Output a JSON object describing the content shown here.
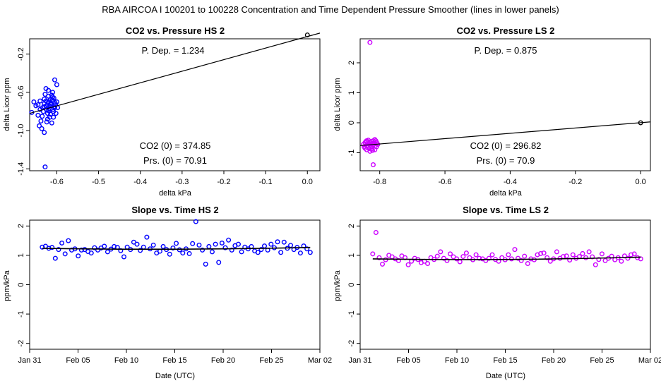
{
  "page_title": "RBA   AIRCOA I  100201 to 100228   Concentration and Time Dependent Pressure Smoother (lines in lower panels)",
  "colors": {
    "hs": "#0000ff",
    "ls": "#cc00ff",
    "axis": "#000000",
    "line": "#000000"
  },
  "chart_data": [
    {
      "id": "p1",
      "type": "scatter",
      "title": "CO2 vs. Pressure HS 2",
      "xlabel": "delta kPa",
      "ylabel": "delta Licor ppm",
      "xlim": [
        -0.665,
        0.03
      ],
      "ylim": [
        -1.42,
        -0.04
      ],
      "xticks": [
        -0.6,
        -0.5,
        -0.4,
        -0.3,
        -0.2,
        -0.1,
        0.0
      ],
      "xtick_labels": [
        "-0.6",
        "-0.5",
        "-0.4",
        "-0.3",
        "-0.2",
        "-0.1",
        "0.0"
      ],
      "yticks": [
        -1.4,
        -1.0,
        -0.6,
        -0.2
      ],
      "ytick_labels": [
        "-1.4",
        "-1.0",
        "-0.6",
        "-0.2"
      ],
      "color_key": "hs",
      "annotations": {
        "p_dep": "P. Dep. =  1.234",
        "co2_0": "CO2 (0) =  374.85",
        "prs_0": "Prs. (0) =  70.91"
      },
      "fit_line": {
        "x": [
          -0.665,
          0.03
        ],
        "y": [
          -0.82,
          0.02
        ]
      },
      "reference_point": {
        "x": 0.0,
        "y": 0.0
      },
      "points": [
        [
          -0.63,
          -0.72
        ],
        [
          -0.625,
          -0.78
        ],
        [
          -0.62,
          -0.7
        ],
        [
          -0.615,
          -0.83
        ],
        [
          -0.61,
          -0.65
        ],
        [
          -0.605,
          -0.76
        ],
        [
          -0.6,
          -0.7
        ],
        [
          -0.635,
          -0.85
        ],
        [
          -0.628,
          -0.62
        ],
        [
          -0.622,
          -0.88
        ],
        [
          -0.618,
          -0.74
        ],
        [
          -0.612,
          -0.69
        ],
        [
          -0.608,
          -0.8
        ],
        [
          -0.603,
          -0.73
        ],
        [
          -0.64,
          -0.69
        ],
        [
          -0.63,
          -0.67
        ],
        [
          -0.625,
          -0.74
        ],
        [
          -0.62,
          -0.79
        ],
        [
          -0.614,
          -0.71
        ],
        [
          -0.61,
          -0.68
        ],
        [
          -0.606,
          -0.75
        ],
        [
          -0.6,
          -0.52
        ],
        [
          -0.605,
          -0.47
        ],
        [
          -0.61,
          -0.6
        ],
        [
          -0.62,
          -0.58
        ],
        [
          -0.626,
          -0.56
        ],
        [
          -0.632,
          -0.8
        ],
        [
          -0.638,
          -0.9
        ],
        [
          -0.645,
          -0.84
        ],
        [
          -0.65,
          -0.74
        ],
        [
          -0.655,
          -0.7
        ],
        [
          -0.66,
          -0.81
        ],
        [
          -0.642,
          -0.95
        ],
        [
          -0.636,
          -0.98
        ],
        [
          -0.63,
          -1.02
        ],
        [
          -0.624,
          -0.91
        ],
        [
          -0.617,
          -0.86
        ],
        [
          -0.612,
          -0.92
        ],
        [
          -0.607,
          -0.66
        ],
        [
          -0.602,
          -0.82
        ],
        [
          -0.598,
          -0.76
        ],
        [
          -0.628,
          -1.38
        ],
        [
          -0.634,
          -0.76
        ],
        [
          -0.62,
          -0.64
        ],
        [
          -0.615,
          -0.72
        ],
        [
          -0.61,
          -0.78
        ],
        [
          -0.622,
          -0.82
        ],
        [
          -0.616,
          -0.68
        ],
        [
          -0.63,
          -0.75
        ],
        [
          -0.612,
          -0.63
        ],
        [
          -0.604,
          -0.71
        ],
        [
          -0.626,
          -0.69
        ],
        [
          -0.618,
          -0.77
        ],
        [
          -0.608,
          -0.86
        ],
        [
          -0.64,
          -0.78
        ],
        [
          -0.645,
          -0.73
        ]
      ]
    },
    {
      "id": "p2",
      "type": "scatter",
      "title": "CO2 vs. Pressure LS 2",
      "xlabel": "delta kPa",
      "ylabel": "delta Licor ppm",
      "xlim": [
        -0.86,
        0.03
      ],
      "ylim": [
        -1.6,
        2.8
      ],
      "xticks": [
        -0.8,
        -0.6,
        -0.4,
        -0.2,
        0.0
      ],
      "xtick_labels": [
        "-0.8",
        "-0.6",
        "-0.4",
        "-0.2",
        "0.0"
      ],
      "yticks": [
        -1,
        0,
        1,
        2
      ],
      "ytick_labels": [
        "-1",
        "0",
        "1",
        "2"
      ],
      "color_key": "ls",
      "annotations": {
        "p_dep": "P. Dep. =  0.875",
        "co2_0": "CO2 (0) =  296.82",
        "prs_0": "Prs. (0) =  70.9"
      },
      "fit_line": {
        "x": [
          -0.86,
          0.03
        ],
        "y": [
          -0.76,
          0.03
        ]
      },
      "reference_point": {
        "x": 0.0,
        "y": 0.0
      },
      "points": [
        [
          -0.83,
          2.68
        ],
        [
          -0.82,
          -1.4
        ],
        [
          -0.84,
          -0.6
        ],
        [
          -0.835,
          -0.7
        ],
        [
          -0.83,
          -0.75
        ],
        [
          -0.825,
          -0.62
        ],
        [
          -0.82,
          -0.68
        ],
        [
          -0.815,
          -0.78
        ],
        [
          -0.81,
          -0.7
        ],
        [
          -0.845,
          -0.85
        ],
        [
          -0.84,
          -0.9
        ],
        [
          -0.835,
          -0.58
        ],
        [
          -0.83,
          -0.95
        ],
        [
          -0.825,
          -0.8
        ],
        [
          -0.82,
          -0.6
        ],
        [
          -0.815,
          -0.9
        ],
        [
          -0.81,
          -0.65
        ],
        [
          -0.85,
          -0.72
        ],
        [
          -0.845,
          -0.66
        ],
        [
          -0.84,
          -0.78
        ],
        [
          -0.835,
          -0.82
        ],
        [
          -0.83,
          -0.64
        ],
        [
          -0.825,
          -0.88
        ],
        [
          -0.82,
          -0.74
        ],
        [
          -0.815,
          -0.56
        ],
        [
          -0.81,
          -0.8
        ],
        [
          -0.806,
          -0.72
        ],
        [
          -0.836,
          -0.76
        ],
        [
          -0.826,
          -0.7
        ],
        [
          -0.816,
          -0.68
        ],
        [
          -0.842,
          -0.62
        ],
        [
          -0.832,
          -0.86
        ],
        [
          -0.822,
          -0.92
        ],
        [
          -0.812,
          -0.6
        ],
        [
          -0.848,
          -0.8
        ]
      ]
    },
    {
      "id": "p3",
      "type": "scatter",
      "title": "Slope vs. Time HS 2",
      "xlabel": "Date (UTC)",
      "ylabel": "ppm/kPa",
      "xlim": [
        0,
        30
      ],
      "ylim": [
        -2.2,
        2.2
      ],
      "xticks": [
        0,
        5,
        10,
        15,
        20,
        25,
        30
      ],
      "xtick_labels": [
        "Jan 31",
        "Feb 05",
        "Feb 10",
        "Feb 15",
        "Feb 20",
        "Feb 25",
        "Mar 02"
      ],
      "yticks": [
        -2,
        -1,
        0,
        1,
        2
      ],
      "ytick_labels": [
        "-2",
        "-1",
        "0",
        "1",
        "2"
      ],
      "color_key": "hs",
      "smoother": {
        "x": [
          1.3,
          29
        ],
        "y": [
          1.24,
          1.27
        ],
        "mid_y": 1.21
      },
      "series_y": [
        1.28,
        1.31,
        1.24,
        1.27,
        0.9,
        1.2,
        1.42,
        1.05,
        1.5,
        1.18,
        1.22,
        0.98,
        1.18,
        1.2,
        1.13,
        1.08,
        1.26,
        1.18,
        1.25,
        1.31,
        1.12,
        1.21,
        1.3,
        1.27,
        1.16,
        0.95,
        1.28,
        1.2,
        1.45,
        1.38,
        1.17,
        1.28,
        1.62,
        1.22,
        1.35,
        1.08,
        1.14,
        1.3,
        1.2,
        1.04,
        1.25,
        1.41,
        1.19,
        1.08,
        1.22,
        1.06,
        1.4,
        2.15,
        1.35,
        1.18,
        0.7,
        1.3,
        1.12,
        1.38,
        0.76,
        1.42,
        1.26,
        1.52,
        1.18,
        1.33,
        1.38,
        1.12,
        1.28,
        1.22,
        1.3,
        1.15,
        1.1,
        1.2,
        1.32,
        1.18,
        1.38,
        1.26,
        1.46,
        1.1,
        1.45,
        1.24,
        1.34,
        1.2,
        1.27,
        1.08,
        1.32,
        1.22,
        1.1
      ]
    },
    {
      "id": "p4",
      "type": "scatter",
      "title": "Slope vs. Time LS 2",
      "xlabel": "Date (UTC)",
      "ylabel": "ppm/kPa",
      "xlim": [
        0,
        30
      ],
      "ylim": [
        -2.2,
        2.2
      ],
      "xticks": [
        0,
        5,
        10,
        15,
        20,
        25,
        30
      ],
      "xtick_labels": [
        "Jan 31",
        "Feb 05",
        "Feb 10",
        "Feb 15",
        "Feb 20",
        "Feb 25",
        "Mar 02"
      ],
      "yticks": [
        -2,
        -1,
        0,
        1,
        2
      ],
      "ytick_labels": [
        "-2",
        "-1",
        "0",
        "1",
        "2"
      ],
      "color_key": "ls",
      "smoother": {
        "x": [
          1.3,
          29
        ],
        "y": [
          0.88,
          0.94
        ],
        "mid_y": 0.86
      },
      "series_y": [
        1.05,
        1.78,
        0.92,
        0.7,
        0.85,
        1.0,
        0.95,
        0.88,
        0.82,
        0.98,
        0.92,
        0.68,
        0.8,
        0.9,
        0.86,
        0.75,
        0.8,
        0.72,
        0.92,
        0.86,
        0.97,
        1.12,
        0.9,
        0.82,
        1.05,
        0.95,
        0.88,
        0.78,
        0.96,
        1.08,
        0.92,
        0.85,
        1.02,
        0.9,
        0.88,
        0.82,
        0.9,
        1.02,
        0.86,
        0.8,
        0.92,
        0.85,
        1.02,
        0.88,
        1.2,
        0.9,
        0.82,
        0.97,
        0.72,
        0.88,
        0.85,
        1.02,
        1.06,
        1.08,
        0.92,
        0.8,
        0.88,
        1.12,
        0.9,
        0.96,
        0.98,
        0.84,
        1.02,
        0.9,
        0.96,
        1.06,
        0.92,
        1.12,
        0.95,
        0.68,
        0.86,
        1.05,
        0.82,
        0.9,
        0.97,
        0.85,
        0.92,
        0.8,
        0.98,
        0.9,
        1.02,
        1.05,
        0.92,
        0.88
      ]
    }
  ]
}
